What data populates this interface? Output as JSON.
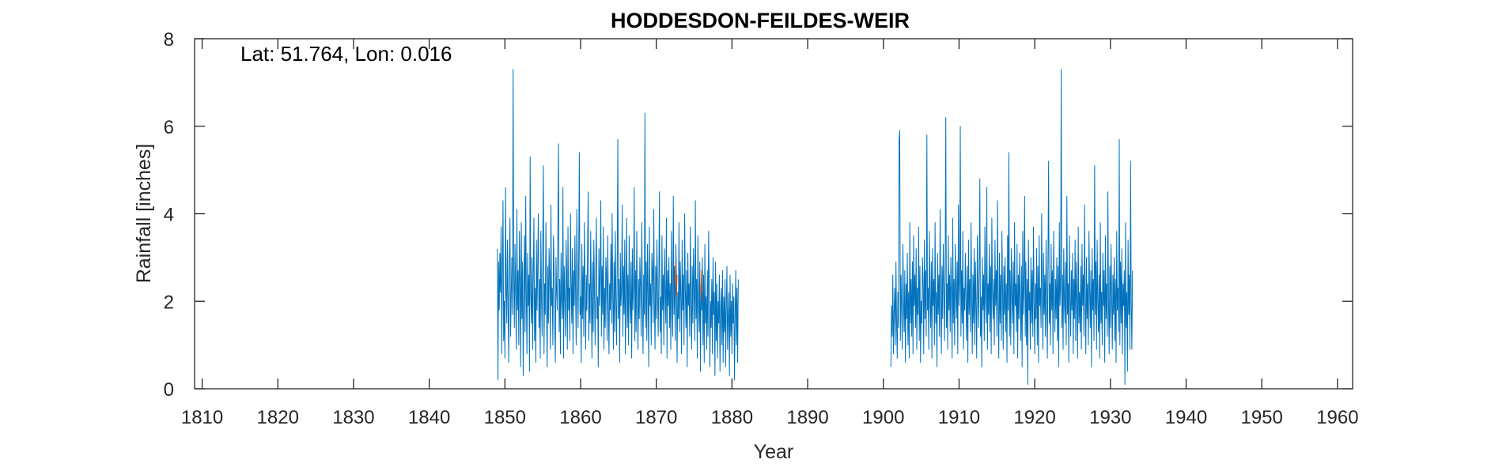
{
  "chart_data": {
    "type": "line",
    "title": "HODDESDON-FEILDES-WEIR",
    "annotation": "Lat: 51.764, Lon: 0.016",
    "xlabel": "Year",
    "ylabel": "Rainfall [inches]",
    "xlim": [
      1809,
      1962
    ],
    "ylim": [
      0,
      8
    ],
    "xticks": [
      1810,
      1820,
      1830,
      1840,
      1850,
      1860,
      1870,
      1880,
      1890,
      1900,
      1910,
      1920,
      1930,
      1940,
      1950,
      1960
    ],
    "yticks": [
      0,
      2,
      4,
      6,
      8
    ],
    "grid": false,
    "series": [
      {
        "color": "#0072BD",
        "segments": [
          {
            "x_start": 1849.0,
            "x_step": 0.0833333333,
            "values": [
              3.2,
              0.2,
              2.9,
              1.8,
              3.1,
              2.2,
              3.7,
              0.8,
              2.5,
              4.3,
              1.1,
              2.0,
              0.7,
              4.6,
              2.3,
              1.5,
              3.4,
              1.9,
              0.6,
              2.8,
              3.9,
              1.2,
              2.1,
              3.0,
              1.7,
              7.3,
              2.6,
              1.4,
              3.3,
              2.2,
              0.9,
              4.1,
              1.8,
              2.7,
              1.0,
              3.6,
              2.4,
              0.5,
              3.8,
              1.6,
              2.9,
              0.3,
              2.1,
              3.5,
              1.3,
              4.4,
              2.0,
              0.8,
              3.1,
              1.9,
              2.6,
              0.4,
              5.3,
              2.2,
              1.5,
              3.0,
              0.9,
              2.7,
              3.9,
              1.1,
              2.3,
              0.6,
              3.4,
              1.8,
              2.9,
              4.0,
              1.4,
              2.5,
              0.7,
              3.6,
              2.1,
              1.2,
              3.3,
              5.1,
              0.8,
              2.4,
              1.7,
              3.8,
              2.0,
              0.5,
              2.8,
              1.5,
              3.2,
              2.6,
              0.9,
              4.2,
              1.9,
              2.3,
              1.0,
              3.5,
              2.7,
              1.4,
              0.6,
              3.0,
              2.2,
              1.8,
              3.9,
              5.6,
              1.3,
              2.5,
              0.8,
              3.1,
              2.0,
              1.6,
              4.6,
              0.7,
              2.8,
              2.1,
              1.2,
              3.4,
              2.6,
              0.9,
              3.7,
              1.8,
              2.3,
              1.1,
              4.0,
              2.4,
              1.5,
              3.2,
              0.8,
              2.7,
              1.9,
              3.5,
              2.2,
              1.0,
              4.1,
              2.5,
              1.4,
              3.0,
              5.4,
              1.7,
              2.1,
              0.6,
              3.3,
              1.6,
              2.8,
              1.2,
              3.8,
              2.3,
              0.9,
              2.6,
              1.8,
              3.1,
              4.5,
              1.1,
              2.4,
              1.5,
              3.6,
              2.0,
              0.7,
              2.9,
              1.3,
              3.4,
              2.2,
              1.0,
              2.7,
              3.9,
              1.6,
              2.1,
              0.5,
              3.2,
              1.9,
              2.5,
              4.3,
              1.2,
              2.8,
              1.7,
              3.7,
              0.9,
              2.3,
              1.4,
              3.0,
              2.6,
              1.1,
              3.5,
              2.0,
              0.8,
              2.4,
              1.8,
              3.3,
              1.5,
              4.0,
              2.2,
              0.9,
              2.9,
              1.3,
              3.6,
              2.1,
              1.0,
              2.7,
              5.7,
              1.6,
              2.5,
              0.6,
              3.1,
              1.9,
              2.3,
              4.2,
              1.2,
              2.8,
              1.7,
              3.4,
              0.8,
              2.2,
              3.9,
              1.4,
              2.6,
              1.0,
              3.5,
              2.0,
              1.5,
              2.9,
              0.7,
              3.2,
              1.8,
              2.4,
              4.6,
              1.1,
              2.7,
              1.3,
              3.6,
              2.1,
              0.9,
              2.5,
              1.6,
              3.0,
              2.3,
              1.2,
              3.8,
              2.0,
              0.8,
              2.6,
              1.7,
              6.3,
              1.4,
              2.9,
              1.1,
              3.3,
              2.2,
              0.5,
              3.7,
              1.9,
              2.4,
              1.0,
              3.1,
              2.7,
              1.5,
              4.1,
              2.0,
              0.9,
              2.8,
              1.6,
              3.4,
              2.3,
              1.2,
              2.5,
              4.5,
              1.3,
              2.1,
              0.8,
              3.5,
              1.8,
              2.6,
              1.0,
              3.2,
              2.2,
              1.5,
              3.9,
              0.7,
              2.7,
              1.9,
              3.0,
              1.4,
              2.4,
              0.9,
              3.6,
              2.0,
              1.2,
              4.4,
              1.7,
              2.8,
              1.1,
              3.3,
              2.5,
              0.6,
              2.2,
              1.6,
              3.8,
              1.3,
              2.9,
              2.1,
              0.8,
              3.4,
              1.8,
              2.6,
              1.0,
              4.0,
              2.3,
              1.4,
              2.7,
              0.5,
              3.1,
              1.9,
              2.4,
              1.2,
              3.7,
              2.0,
              0.9,
              2.8,
              1.5,
              3.2,
              2.2,
              1.1,
              4.3,
              1.6,
              2.5,
              0.7,
              3.5,
              2.0,
              1.3,
              2.9,
              0.4,
              2.4,
              1.8,
              3.0,
              1.0,
              2.6,
              0.6,
              3.3,
              1.5,
              2.1,
              0.9,
              2.7,
              1.2,
              3.6,
              2.3,
              0.5,
              2.0,
              1.4,
              2.5,
              0.8,
              3.0,
              1.7,
              2.2,
              0.3,
              2.9,
              1.1,
              2.4,
              0.7,
              2.0,
              1.5,
              2.6,
              0.4,
              1.8,
              2.3,
              1.0,
              2.7,
              0.6,
              2.1,
              1.3,
              2.5,
              0.5,
              1.9,
              2.8,
              0.9,
              1.6,
              2.2,
              0.3,
              2.6,
              1.2,
              2.0,
              0.8,
              2.4,
              1.5,
              2.1,
              0.2,
              1.7,
              2.7,
              1.0,
              2.3,
              0.6,
              2.5
            ]
          },
          {
            "x_start": 1901.0,
            "x_step": 0.0833333333,
            "values": [
              0.5,
              1.9,
              1.2,
              2.6,
              0.8,
              1.7,
              2.3,
              1.0,
              2.9,
              1.5,
              0.7,
              2.2,
              1.4,
              5.7,
              5.9,
              1.1,
              2.6,
              1.8,
              0.9,
              3.3,
              2.0,
              1.3,
              2.7,
              0.6,
              2.4,
              1.6,
              3.1,
              1.0,
              2.2,
              0.7,
              3.8,
              1.5,
              2.5,
              1.2,
              2.9,
              0.8,
              3.5,
              1.9,
              2.6,
              1.4,
              3.2,
              0.9,
              2.3,
              1.7,
              3.7,
              1.1,
              2.8,
              0.6,
              2.0,
              1.5,
              3.0,
              2.4,
              0.8,
              3.4,
              1.6,
              2.7,
              1.2,
              5.8,
              1.8,
              2.3,
              0.9,
              3.6,
              2.1,
              1.4,
              2.9,
              0.7,
              3.2,
              1.9,
              2.5,
              1.0,
              3.8,
              1.5,
              2.2,
              0.5,
              3.1,
              1.7,
              2.6,
              1.2,
              4.1,
              2.0,
              0.8,
              2.8,
              1.6,
              3.3,
              2.3,
              1.1,
              2.7,
              6.2,
              1.4,
              2.4,
              0.9,
              3.5,
              1.8,
              2.6,
              1.3,
              3.0,
              2.1,
              0.7,
              3.9,
              1.5,
              2.5,
              1.0,
              3.3,
              2.2,
              1.6,
              2.9,
              0.8,
              4.2,
              1.9,
              2.4,
              6.0,
              1.2,
              2.7,
              1.5,
              3.6,
              0.9,
              2.3,
              1.8,
              3.1,
              2.0,
              1.1,
              2.8,
              0.6,
              3.4,
              1.7,
              2.5,
              1.3,
              3.8,
              2.2,
              0.8,
              2.6,
              1.5,
              3.2,
              1.0,
              2.9,
              1.9,
              0.7,
              3.5,
              2.3,
              1.4,
              2.7,
              4.8,
              1.2,
              2.1,
              0.5,
              3.0,
              1.8,
              2.6,
              1.1,
              3.7,
              2.0,
              1.5,
              4.6,
              0.9,
              2.4,
              1.7,
              3.3,
              1.3,
              2.8,
              0.8,
              3.9,
              2.2,
              1.6,
              2.5,
              1.0,
              3.4,
              1.9,
              2.7,
              1.2,
              4.3,
              2.0,
              0.7,
              3.1,
              1.5,
              2.6,
              1.1,
              3.6,
              2.3,
              0.9,
              2.8,
              1.7,
              3.0,
              1.3,
              2.4,
              0.6,
              3.5,
              1.8,
              5.4,
              1.2,
              2.7,
              1.0,
              3.2,
              2.1,
              1.5,
              2.9,
              0.8,
              3.8,
              1.9,
              2.4,
              1.3,
              3.3,
              0.7,
              2.6,
              1.6,
              3.1,
              2.0,
              1.1,
              2.8,
              0.5,
              3.6,
              1.7,
              2.3,
              4.4,
              1.2,
              2.9,
              1.0,
              2.5,
              0.1,
              3.4,
              1.8,
              2.2,
              0.9,
              3.0,
              1.5,
              2.7,
              1.2,
              3.7,
              2.0,
              0.8,
              2.4,
              1.6,
              3.2,
              1.0,
              2.8,
              0.6,
              3.5,
              1.9,
              2.3,
              1.4,
              4.0,
              2.1,
              0.9,
              3.1,
              1.7,
              2.6,
              1.2,
              3.4,
              2.0,
              0.7,
              2.9,
              5.2,
              1.5,
              2.4,
              1.0,
              3.3,
              1.8,
              2.7,
              0.8,
              3.6,
              2.2,
              1.3,
              2.5,
              1.6,
              3.0,
              1.1,
              2.8,
              0.5,
              3.8,
              1.9,
              2.3,
              7.3,
              1.4,
              2.6,
              0.9,
              3.2,
              2.0,
              1.5,
              2.9,
              1.0,
              4.4,
              1.7,
              2.4,
              0.6,
              3.5,
              2.1,
              1.2,
              2.7,
              1.8,
              3.1,
              0.8,
              2.5,
              1.6,
              3.4,
              1.1,
              2.9,
              2.0,
              0.7,
              3.7,
              1.5,
              2.2,
              1.3,
              2.8,
              0.9,
              3.3,
              1.9,
              2.6,
              1.2,
              4.2,
              2.1,
              0.8,
              3.0,
              1.6,
              2.4,
              1.0,
              3.6,
              2.3,
              1.4,
              2.7,
              0.5,
              3.2,
              1.8,
              2.5,
              1.1,
              5.1,
              1.7,
              2.9,
              0.9,
              3.4,
              2.0,
              1.3,
              2.6,
              0.7,
              3.8,
              1.5,
              2.2,
              1.0,
              3.1,
              1.9,
              2.7,
              0.6,
              3.5,
              1.6,
              2.4,
              1.2,
              4.5,
              2.0,
              0.8,
              2.8,
              1.4,
              3.3,
              2.1,
              0.9,
              2.6,
              1.7,
              3.0,
              1.1,
              2.5,
              0.6,
              3.6,
              1.8,
              2.3,
              1.3,
              5.7,
              1.0,
              2.9,
              1.5,
              3.2,
              0.8,
              2.4,
              1.9,
              2.7,
              0.1,
              3.8,
              1.4,
              2.2,
              0.4,
              3.4,
              1.7,
              2.6,
              0.9,
              5.2,
              2.0,
              0.9,
              2.7
            ]
          }
        ]
      },
      {
        "color": "#D95319",
        "segments": [
          {
            "x_start": 1872.5,
            "x_step": 0.0833333333,
            "values": [
              2.4,
              2.9,
              2.1,
              2.6
            ]
          },
          {
            "x_start": 1875.9,
            "x_step": 0.0833333333,
            "values": [
              2.2,
              2.7,
              2.0
            ]
          }
        ]
      }
    ]
  }
}
